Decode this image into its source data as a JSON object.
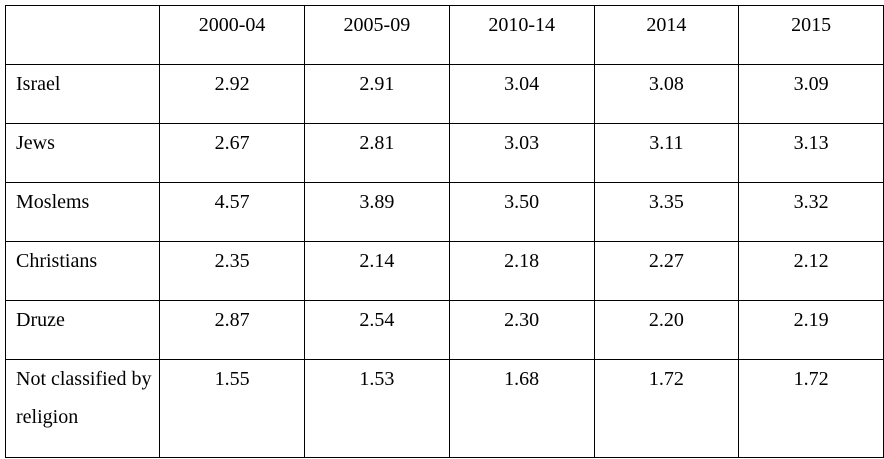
{
  "table": {
    "corner": "",
    "columns": [
      "2000-04",
      "2005-09",
      "2010-14",
      "2014",
      "2015"
    ],
    "rows": [
      {
        "label": "Israel",
        "values": [
          "2.92",
          "2.91",
          "3.04",
          "3.08",
          "3.09"
        ]
      },
      {
        "label": "Jews",
        "values": [
          "2.67",
          "2.81",
          "3.03",
          "3.11",
          "3.13"
        ]
      },
      {
        "label": "Moslems",
        "values": [
          "4.57",
          "3.89",
          "3.50",
          "3.35",
          "3.32"
        ]
      },
      {
        "label": "Christians",
        "values": [
          "2.35",
          "2.14",
          "2.18",
          "2.27",
          "2.12"
        ]
      },
      {
        "label": "Druze",
        "values": [
          "2.87",
          "2.54",
          "2.30",
          "2.20",
          "2.19"
        ]
      },
      {
        "label": "Not classified by religion",
        "values": [
          "1.55",
          "1.53",
          "1.68",
          "1.72",
          "1.72"
        ]
      }
    ]
  }
}
